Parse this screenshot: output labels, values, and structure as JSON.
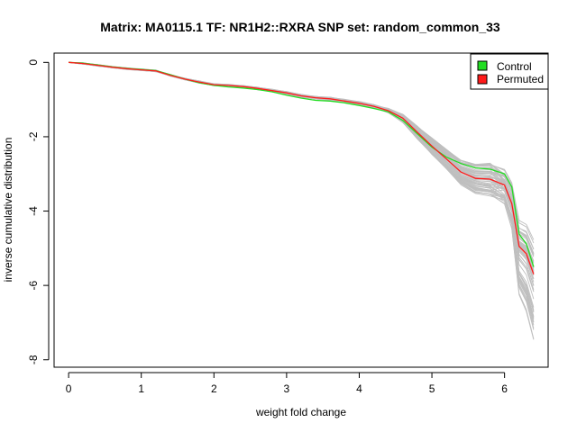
{
  "chart_data": {
    "type": "line",
    "title": "Matrix: MA0115.1 TF: NR1H2::RXRA SNP set: random_common_33",
    "xlabel": "weight fold change",
    "ylabel": "inverse cumulative distribution",
    "xlim": [
      -0.2,
      6.6
    ],
    "ylim": [
      -8.2,
      0.25
    ],
    "xticks": [
      "0",
      "1",
      "2",
      "3",
      "4",
      "5",
      "6"
    ],
    "yticks": [
      "0",
      "-2",
      "-4",
      "-6",
      "-8"
    ],
    "grid": false,
    "legend_position": "top-right",
    "legend": [
      {
        "label": "Control",
        "color": "#22dd22"
      },
      {
        "label": "Permuted",
        "color": "#ff1a1a"
      }
    ],
    "background_series_color": "#bfbfbf",
    "background_series_count": 60,
    "x": [
      0,
      0.2,
      0.4,
      0.6,
      0.8,
      1.0,
      1.2,
      1.4,
      1.6,
      1.8,
      2.0,
      2.2,
      2.4,
      2.6,
      2.8,
      3.0,
      3.2,
      3.4,
      3.6,
      3.8,
      4.0,
      4.2,
      4.4,
      4.6,
      4.8,
      5.0,
      5.2,
      5.4,
      5.6,
      5.8,
      6.0,
      6.1,
      6.2,
      6.3,
      6.4
    ],
    "series": [
      {
        "name": "Control",
        "color": "#22dd22",
        "values": [
          0,
          -0.02,
          -0.07,
          -0.12,
          -0.16,
          -0.19,
          -0.22,
          -0.33,
          -0.45,
          -0.55,
          -0.62,
          -0.66,
          -0.69,
          -0.73,
          -0.79,
          -0.88,
          -0.96,
          -1.02,
          -1.04,
          -1.09,
          -1.16,
          -1.24,
          -1.33,
          -1.56,
          -1.92,
          -2.28,
          -2.55,
          -2.72,
          -2.84,
          -2.87,
          -3.0,
          -3.35,
          -4.62,
          -4.88,
          -5.5
        ]
      },
      {
        "name": "Permuted",
        "color": "#ff1a1a",
        "values": [
          0,
          -0.03,
          -0.08,
          -0.13,
          -0.17,
          -0.2,
          -0.23,
          -0.35,
          -0.45,
          -0.53,
          -0.6,
          -0.62,
          -0.65,
          -0.7,
          -0.76,
          -0.82,
          -0.9,
          -0.95,
          -0.98,
          -1.04,
          -1.1,
          -1.18,
          -1.3,
          -1.5,
          -1.88,
          -2.25,
          -2.6,
          -2.95,
          -3.12,
          -3.14,
          -3.3,
          -3.8,
          -4.95,
          -5.15,
          -5.7
        ]
      }
    ]
  }
}
